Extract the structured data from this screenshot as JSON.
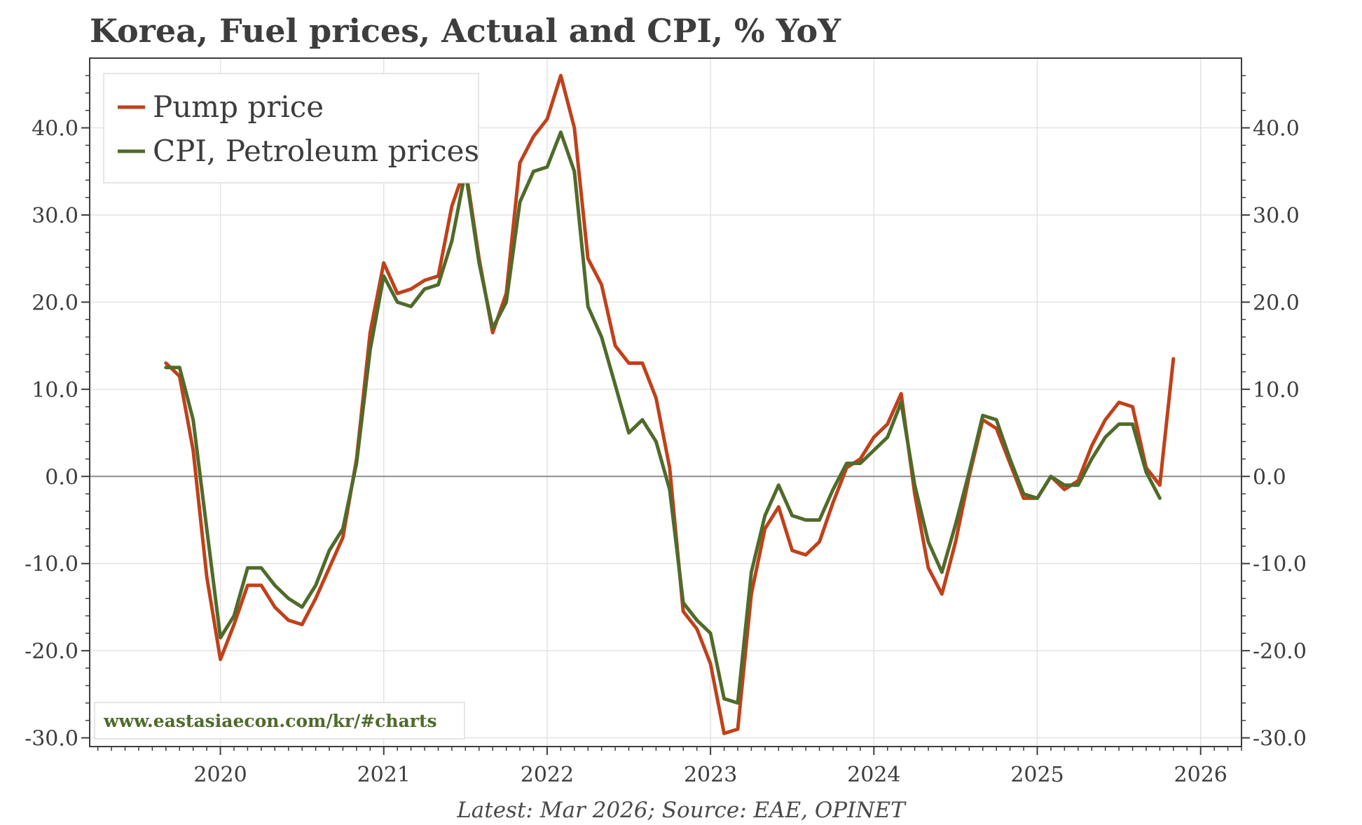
{
  "colors": {
    "pump": "#c0411a",
    "cpi": "#4f6b2a",
    "grid": "#e3e3e3",
    "zero": "#8c8c8c",
    "axis": "#3d3d3d",
    "text": "#3d3d3d"
  },
  "chart_data": {
    "type": "line",
    "title": "Korea, Fuel prices, Actual and CPI, % YoY",
    "source_note": "Latest: Mar 2026; Source: EAE, OPINET",
    "watermark": "www.eastasiaecon.com/kr/#charts",
    "xlim": [
      2019.2,
      2026.25
    ],
    "ylim": [
      -31,
      48
    ],
    "x_ticks": [
      2020,
      2021,
      2022,
      2023,
      2024,
      2025,
      2026
    ],
    "x_tick_labels": [
      "2020",
      "2021",
      "2022",
      "2023",
      "2024",
      "2025",
      "2026"
    ],
    "y_ticks": [
      -30,
      -20,
      -10,
      0,
      10,
      20,
      30,
      40
    ],
    "y_tick_labels": [
      "-30.0",
      "-20.0",
      "-10.0",
      "0.0",
      "10.0",
      "20.0",
      "30.0",
      "40.0"
    ],
    "grid": true,
    "legend_position": "top-left",
    "series": [
      {
        "name": "Pump price",
        "key": "pump",
        "start": 2019.6667,
        "step": 0.08333,
        "values": [
          13.0,
          11.5,
          3.0,
          -11.5,
          -21.0,
          -17.0,
          -12.5,
          -12.5,
          -15.0,
          -16.5,
          -17.0,
          -14.0,
          -10.5,
          -7.0,
          2.0,
          16.5,
          24.5,
          21.0,
          21.5,
          22.5,
          23.0,
          31.0,
          35.5,
          25.0,
          16.5,
          21.0,
          36.0,
          39.0,
          41.0,
          46.0,
          40.0,
          25.0,
          22.0,
          15.0,
          13.0,
          13.0,
          9.0,
          1.0,
          -15.5,
          -17.5,
          -21.5,
          -29.5,
          -29.0,
          -13.5,
          -6.0,
          -3.5,
          -8.5,
          -9.0,
          -7.5,
          -3.0,
          1.0,
          2.0,
          4.5,
          6.0,
          9.5,
          -2.0,
          -10.5,
          -13.5,
          -7.5,
          0.0,
          6.5,
          5.5,
          1.5,
          -2.5,
          -2.5,
          0.0,
          -1.5,
          -0.5,
          3.5,
          6.5,
          8.5,
          8.0,
          1.0,
          -1.0,
          13.5
        ]
      },
      {
        "name": "CPI, Petroleum prices",
        "key": "cpi",
        "start": 2019.6667,
        "step": 0.08333,
        "values": [
          12.5,
          12.5,
          6.5,
          -6.0,
          -18.5,
          -16.0,
          -10.5,
          -10.5,
          -12.5,
          -14.0,
          -15.0,
          -12.5,
          -8.5,
          -6.0,
          1.5,
          14.5,
          23.0,
          20.0,
          19.5,
          21.5,
          22.0,
          27.0,
          35.0,
          24.5,
          17.0,
          20.0,
          31.5,
          35.0,
          35.5,
          39.5,
          35.0,
          19.5,
          16.0,
          10.5,
          5.0,
          6.5,
          4.0,
          -1.5,
          -14.5,
          -16.5,
          -18.0,
          -25.5,
          -26.0,
          -11.0,
          -4.5,
          -1.0,
          -4.5,
          -5.0,
          -5.0,
          -1.5,
          1.5,
          1.5,
          3.0,
          4.5,
          8.5,
          -1.0,
          -7.5,
          -11.0,
          -5.5,
          0.5,
          7.0,
          6.5,
          2.0,
          -2.0,
          -2.5,
          0.0,
          -1.0,
          -1.0,
          2.0,
          4.5,
          6.0,
          6.0,
          0.5,
          -2.5
        ]
      }
    ]
  }
}
